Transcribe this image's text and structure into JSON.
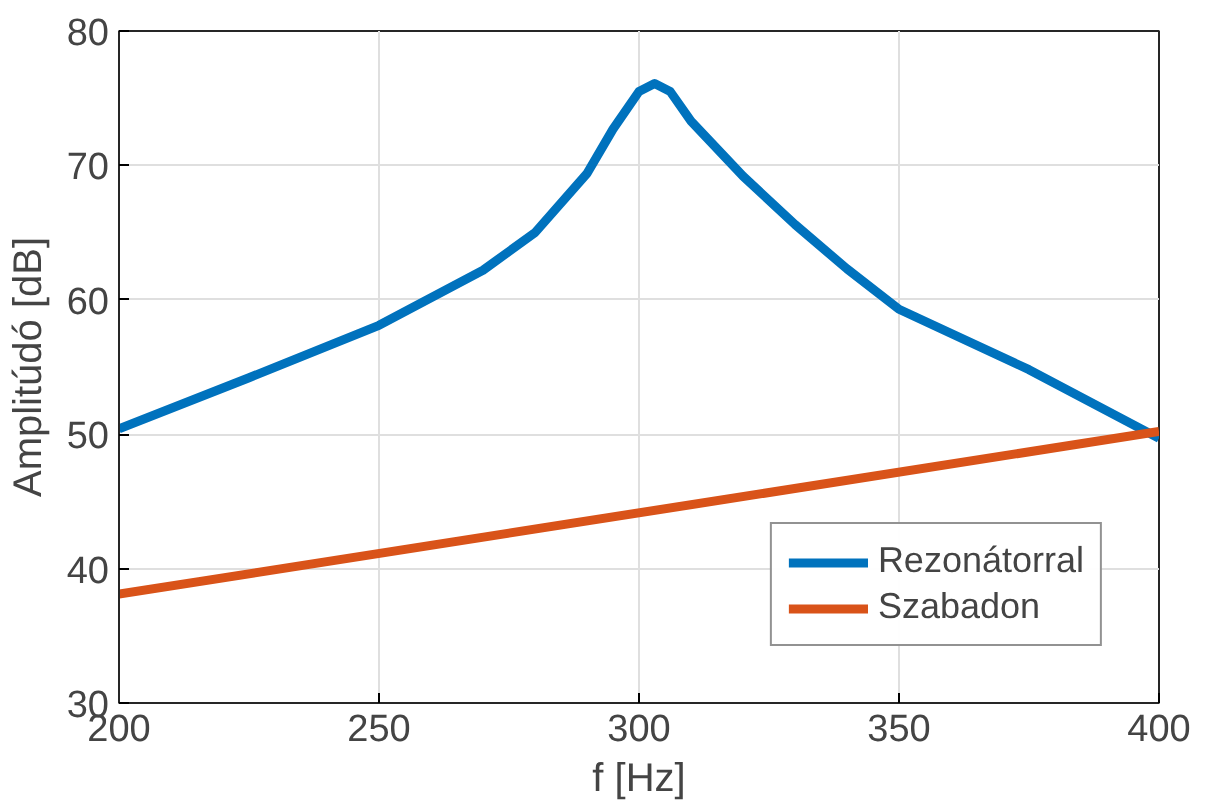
{
  "chart_data": {
    "type": "line",
    "xlabel": "f [Hz]",
    "ylabel": "Amplitúdó [dB]",
    "xlim": [
      200,
      400
    ],
    "ylim": [
      30,
      80
    ],
    "xticks": [
      200,
      250,
      300,
      350,
      400
    ],
    "yticks": [
      30,
      40,
      50,
      60,
      70,
      80
    ],
    "grid": true,
    "legend": "bottom right",
    "line_style": "solid",
    "series": [
      {
        "name": "Rezonátorral",
        "color": "#0072bd",
        "x": [
          200,
          225,
          250,
          270,
          280,
          290,
          295,
          300,
          303,
          306,
          310,
          320,
          330,
          340,
          350,
          375,
          400
        ],
        "values": [
          50.4,
          54.2,
          58.1,
          62.2,
          65.0,
          69.4,
          72.7,
          75.5,
          76.1,
          75.5,
          73.3,
          69.2,
          65.6,
          62.3,
          59.3,
          54.8,
          49.7
        ]
      },
      {
        "name": "Szabadon",
        "color": "#d95319",
        "x": [
          200,
          400
        ],
        "values": [
          38.1,
          50.2
        ]
      }
    ]
  }
}
